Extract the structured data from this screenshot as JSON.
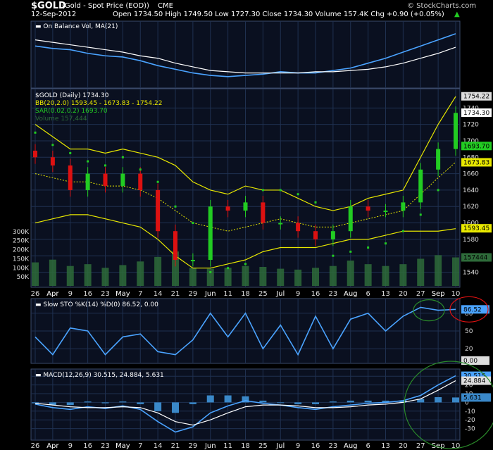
{
  "header": {
    "symbol": "$GOLD",
    "name": "(Gold - Spot Price (EOD))",
    "exchange": "CME",
    "date": "12-Sep-2012",
    "ohlc": "Open 1734.50  High 1749.50  Low 1727.30  Close 1734.30  Volume 157.4K  Chg +0.90 (+0.05%)",
    "chg_arrow": "▲",
    "brand": "© StockCharts.com"
  },
  "colors": {
    "price_up": "#22cc22",
    "price_down": "#dd1111",
    "bb": "#e8e800",
    "sar": "#22cc22",
    "obv": "#4aa3ff",
    "ma": "#ffffff",
    "grid": "#1f3050",
    "panel": "#0a1020"
  },
  "chart_data": [
    {
      "type": "line",
      "panel": "obv",
      "legend": [
        "On Balance Vol, MA(21)"
      ],
      "x": [
        "Mar 26",
        "Apr 2",
        "Apr 9",
        "Apr 16",
        "Apr 23",
        "May 1",
        "May 7",
        "May 14",
        "May 21",
        "May 29",
        "Jun 4",
        "Jun 11",
        "Jun 18",
        "Jun 25",
        "Jul 2",
        "Jul 9",
        "Jul 16",
        "Jul 23",
        "Jul 30",
        "Aug 6",
        "Aug 13",
        "Aug 20",
        "Aug 27",
        "Sep 4",
        "Sep 10"
      ],
      "series": [
        {
          "name": "On Balance Vol",
          "values": [
            52,
            50,
            49,
            46,
            44,
            43,
            40,
            36,
            33,
            30,
            28,
            27,
            28,
            29,
            31,
            30,
            30,
            32,
            34,
            38,
            42,
            47,
            52,
            57,
            62
          ]
        },
        {
          "name": "MA(21)",
          "values": [
            57,
            55,
            53,
            51,
            49,
            47,
            44,
            42,
            38,
            35,
            32,
            31,
            30,
            30,
            30,
            30,
            31,
            31,
            32,
            33,
            35,
            38,
            42,
            46,
            51
          ]
        }
      ]
    },
    {
      "type": "line",
      "panel": "price",
      "legend": [
        "$GOLD (Daily) 1734.30",
        "BB(20,2.0) 1593.45 - 1673.83 - 1754.22",
        "SAR(0.02,0.2) 1693.70",
        "Volume 157,444"
      ],
      "x": [
        "Mar 26",
        "Apr 2",
        "Apr 9",
        "Apr 16",
        "Apr 23",
        "May 1",
        "May 7",
        "May 14",
        "May 21",
        "May 29",
        "Jun 4",
        "Jun 11",
        "Jun 18",
        "Jun 25",
        "Jul 2",
        "Jul 9",
        "Jul 16",
        "Jul 23",
        "Jul 30",
        "Aug 6",
        "Aug 13",
        "Aug 20",
        "Aug 27",
        "Sep 4",
        "Sep 10"
      ],
      "series": [
        {
          "name": "$GOLD",
          "values": [
            1680,
            1670,
            1640,
            1660,
            1645,
            1660,
            1640,
            1590,
            1555,
            1555,
            1620,
            1615,
            1625,
            1600,
            1600,
            1590,
            1580,
            1590,
            1620,
            1615,
            1615,
            1625,
            1665,
            1690,
            1734
          ]
        },
        {
          "name": "BB Upper",
          "values": [
            1720,
            1705,
            1690,
            1690,
            1685,
            1690,
            1685,
            1680,
            1670,
            1650,
            1640,
            1635,
            1645,
            1640,
            1640,
            1630,
            1620,
            1615,
            1620,
            1630,
            1635,
            1640,
            1680,
            1720,
            1754
          ]
        },
        {
          "name": "BB Middle",
          "values": [
            1660,
            1655,
            1650,
            1650,
            1645,
            1645,
            1640,
            1630,
            1615,
            1600,
            1595,
            1590,
            1595,
            1600,
            1605,
            1600,
            1595,
            1595,
            1600,
            1605,
            1610,
            1615,
            1635,
            1655,
            1674
          ]
        },
        {
          "name": "BB Lower",
          "values": [
            1600,
            1605,
            1610,
            1610,
            1605,
            1600,
            1595,
            1580,
            1560,
            1545,
            1545,
            1550,
            1555,
            1565,
            1570,
            1570,
            1570,
            1575,
            1580,
            1580,
            1585,
            1590,
            1590,
            1590,
            1593
          ]
        },
        {
          "name": "SAR",
          "values": [
            1710,
            1695,
            1685,
            1675,
            1670,
            1680,
            1665,
            1650,
            1620,
            1600,
            1540,
            1545,
            1550,
            1640,
            1640,
            1635,
            1625,
            1560,
            1565,
            1570,
            1575,
            1590,
            1610,
            1640,
            1694
          ]
        }
      ],
      "volume": [
        130000,
        145000,
        110000,
        120000,
        100000,
        115000,
        135000,
        160000,
        190000,
        100000,
        95000,
        100000,
        110000,
        105000,
        95000,
        90000,
        100000,
        110000,
        140000,
        120000,
        110000,
        120000,
        150000,
        170000,
        157444
      ],
      "price_ticks": [
        1540,
        1560,
        1580,
        1600,
        1620,
        1640,
        1660,
        1680,
        1700,
        1720,
        1740
      ],
      "volume_ticks": [
        "50K",
        "100K",
        "150K",
        "200K",
        "250K",
        "300K"
      ],
      "ylim": [
        1525,
        1760
      ],
      "labels_right": [
        "1754.22",
        "1734.30",
        "1693.70",
        "1673.83",
        "1593.45",
        "157444"
      ]
    },
    {
      "type": "line",
      "panel": "slowsto",
      "legend": [
        "Slow STO %K(14) %D(0) 86.52, 0.00"
      ],
      "x": [
        "Mar 26",
        "Apr 2",
        "Apr 9",
        "Apr 16",
        "Apr 23",
        "May 1",
        "May 7",
        "May 14",
        "May 21",
        "May 29",
        "Jun 4",
        "Jun 11",
        "Jun 18",
        "Jun 25",
        "Jul 2",
        "Jul 9",
        "Jul 16",
        "Jul 23",
        "Jul 30",
        "Aug 6",
        "Aug 13",
        "Aug 20",
        "Aug 27",
        "Sep 4",
        "Sep 10"
      ],
      "series": [
        {
          "name": "%K",
          "values": [
            40,
            10,
            55,
            50,
            10,
            40,
            45,
            15,
            10,
            35,
            80,
            40,
            80,
            20,
            60,
            10,
            75,
            20,
            70,
            80,
            50,
            75,
            90,
            85,
            86.52
          ]
        }
      ],
      "ylim": [
        0,
        100
      ],
      "ticks": [
        20,
        50,
        80
      ],
      "labels_right": [
        "86.52",
        "0.00"
      ]
    },
    {
      "type": "line",
      "panel": "macd",
      "legend": [
        "MACD(12,26,9) 30.515, 24.884, 5.631"
      ],
      "x": [
        "Mar 26",
        "Apr 2",
        "Apr 9",
        "Apr 16",
        "Apr 23",
        "May 1",
        "May 7",
        "May 14",
        "May 21",
        "May 29",
        "Jun 4",
        "Jun 11",
        "Jun 18",
        "Jun 25",
        "Jul 2",
        "Jul 9",
        "Jul 16",
        "Jul 23",
        "Jul 30",
        "Aug 6",
        "Aug 13",
        "Aug 20",
        "Aug 27",
        "Sep 4",
        "Sep 10"
      ],
      "series": [
        {
          "name": "MACD",
          "values": [
            -2,
            -6,
            -8,
            -5,
            -7,
            -4,
            -8,
            -22,
            -34,
            -28,
            -12,
            -4,
            2,
            -1,
            -3,
            -6,
            -8,
            -5,
            -3,
            -1,
            0,
            2,
            8,
            20,
            30.515
          ]
        },
        {
          "name": "Signal",
          "values": [
            -1,
            -3,
            -5,
            -6,
            -6,
            -5,
            -6,
            -12,
            -22,
            -26,
            -20,
            -12,
            -5,
            -3,
            -3,
            -4,
            -6,
            -6,
            -5,
            -3,
            -2,
            0,
            4,
            14,
            24.884
          ]
        },
        {
          "name": "Histogram",
          "values": [
            -1,
            -3,
            -3,
            1,
            -1,
            1,
            -2,
            -10,
            -12,
            -2,
            8,
            8,
            7,
            2,
            0,
            -2,
            -2,
            1,
            2,
            2,
            2,
            2,
            4,
            6,
            5.631
          ]
        }
      ],
      "ylim": [
        -40,
        35
      ],
      "ticks": [
        -30,
        -20,
        -10,
        0,
        10,
        20,
        30
      ],
      "labels_right": [
        "30.515",
        "24.884",
        "5.631"
      ]
    }
  ],
  "x_axis": [
    "26",
    "Apr",
    "9",
    "16",
    "23",
    "May",
    "7",
    "14",
    "21",
    "29",
    "Jun",
    "11",
    "18",
    "25",
    "Jul",
    "9",
    "16",
    "23",
    "Aug",
    "6",
    "13",
    "20",
    "27",
    "Sep",
    "10"
  ]
}
